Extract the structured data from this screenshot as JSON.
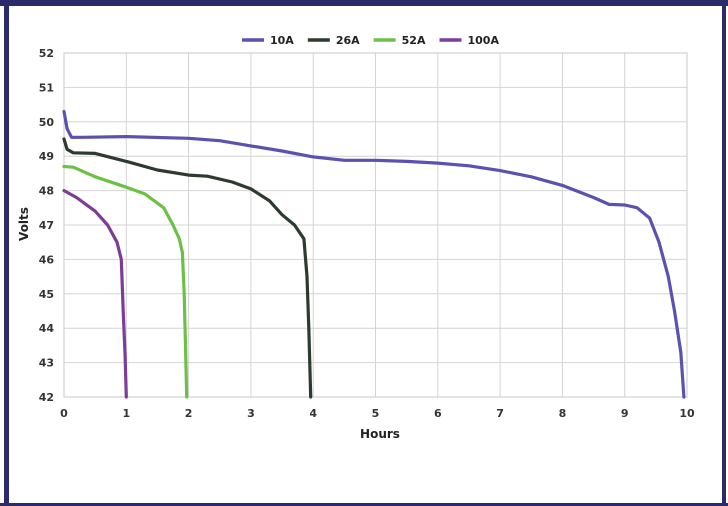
{
  "chart_data": {
    "type": "line",
    "title": "",
    "xlabel": "Hours",
    "ylabel": "Volts",
    "xlim": [
      0,
      10
    ],
    "ylim": [
      42,
      52
    ],
    "x_ticks": [
      "0",
      "1",
      "2",
      "3",
      "4",
      "5",
      "6",
      "7",
      "8",
      "9",
      "10"
    ],
    "y_ticks": [
      "52",
      "51",
      "50",
      "49",
      "48",
      "47",
      "46",
      "45",
      "44",
      "43",
      "42"
    ],
    "grid": true,
    "legend_position": "top-center",
    "series": [
      {
        "name": "10A",
        "color": "#5b51b0",
        "points": [
          [
            0,
            50.3
          ],
          [
            0.05,
            49.8
          ],
          [
            0.12,
            49.55
          ],
          [
            0.3,
            49.55
          ],
          [
            1,
            49.57
          ],
          [
            2,
            49.52
          ],
          [
            2.5,
            49.45
          ],
          [
            3,
            49.3
          ],
          [
            3.5,
            49.15
          ],
          [
            4,
            48.98
          ],
          [
            4.5,
            48.88
          ],
          [
            5,
            48.88
          ],
          [
            5.5,
            48.85
          ],
          [
            6,
            48.8
          ],
          [
            6.5,
            48.72
          ],
          [
            7,
            48.58
          ],
          [
            7.5,
            48.4
          ],
          [
            8,
            48.15
          ],
          [
            8.5,
            47.8
          ],
          [
            8.75,
            47.6
          ],
          [
            9.0,
            47.58
          ],
          [
            9.2,
            47.5
          ],
          [
            9.4,
            47.2
          ],
          [
            9.55,
            46.5
          ],
          [
            9.7,
            45.5
          ],
          [
            9.8,
            44.5
          ],
          [
            9.9,
            43.3
          ],
          [
            9.95,
            42
          ]
        ]
      },
      {
        "name": "26A",
        "color": "#2d3a2f",
        "points": [
          [
            0,
            49.5
          ],
          [
            0.05,
            49.2
          ],
          [
            0.15,
            49.1
          ],
          [
            0.5,
            49.08
          ],
          [
            1,
            48.85
          ],
          [
            1.5,
            48.6
          ],
          [
            2,
            48.45
          ],
          [
            2.3,
            48.42
          ],
          [
            2.7,
            48.25
          ],
          [
            3,
            48.05
          ],
          [
            3.3,
            47.7
          ],
          [
            3.5,
            47.3
          ],
          [
            3.7,
            47.0
          ],
          [
            3.85,
            46.6
          ],
          [
            3.9,
            45.5
          ],
          [
            3.93,
            44
          ],
          [
            3.96,
            42
          ]
        ]
      },
      {
        "name": "52A",
        "color": "#6cc044",
        "points": [
          [
            0,
            48.7
          ],
          [
            0.15,
            48.68
          ],
          [
            0.5,
            48.4
          ],
          [
            1,
            48.1
          ],
          [
            1.3,
            47.9
          ],
          [
            1.6,
            47.5
          ],
          [
            1.75,
            47.0
          ],
          [
            1.85,
            46.6
          ],
          [
            1.9,
            46.2
          ],
          [
            1.93,
            45
          ],
          [
            1.95,
            43.5
          ],
          [
            1.97,
            42
          ]
        ]
      },
      {
        "name": "100A",
        "color": "#7d3c98",
        "points": [
          [
            0,
            48.0
          ],
          [
            0.2,
            47.8
          ],
          [
            0.5,
            47.4
          ],
          [
            0.7,
            47.0
          ],
          [
            0.85,
            46.5
          ],
          [
            0.92,
            46.0
          ],
          [
            0.95,
            44.5
          ],
          [
            0.98,
            43.2
          ],
          [
            1.0,
            42
          ]
        ]
      }
    ]
  }
}
